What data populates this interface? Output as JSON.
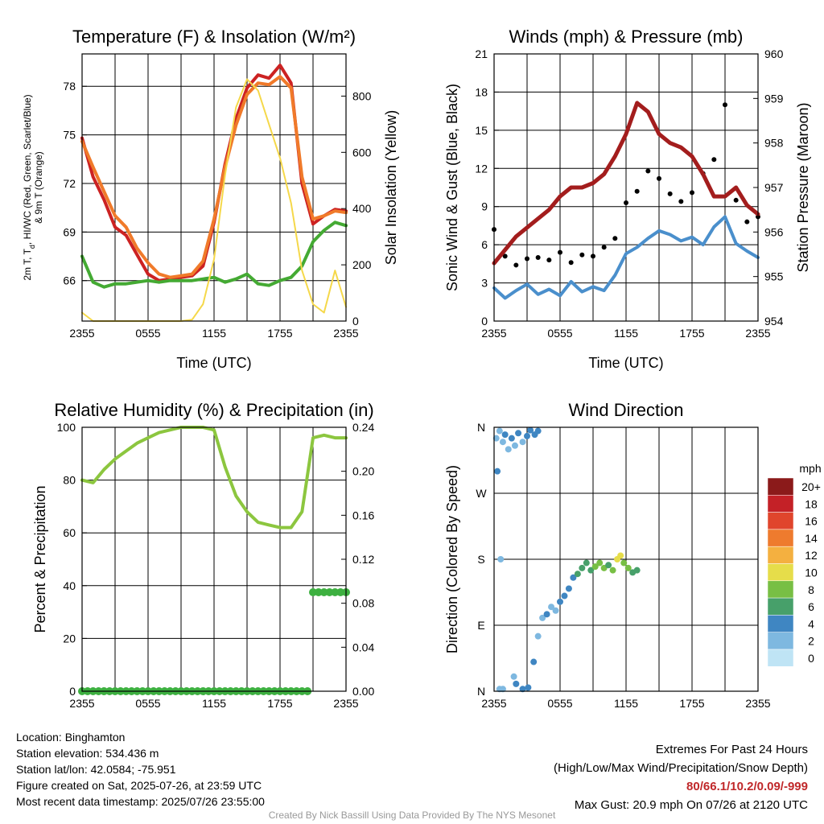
{
  "panels": {
    "temp": {
      "title": "Temperature (F) & Insolation (W/m²)",
      "ylabel_left": [
        "2m T, T",
        "d",
        ", HI/WC (Red, Green, Scarlet/Blue)",
        "& 9m T (Orange)"
      ],
      "ylabel_right": "Solar Insolation (Yellow)",
      "xlabel": "Time (UTC)"
    },
    "winds": {
      "title": "Winds (mph) & Pressure (mb)",
      "ylabel_left": "Sonic Wind & Gust (Blue, Black)",
      "ylabel_right": "Station Pressure (Maroon)",
      "xlabel": "Time (UTC)"
    },
    "rh": {
      "title": "Relative Humidity (%) & Precipitation (in)",
      "ylabel_left": "Percent & Precipitation"
    },
    "wdir": {
      "title": "Wind Direction",
      "ylabel_left": "Direction (Colored By Speed)",
      "colorbar_unit": "mph"
    }
  },
  "info_left": [
    "Location: Binghamton",
    "Station elevation: 534.436 m",
    "Station lat/lon: 42.0584; -75.951",
    "Figure created on Sat, 2025-07-26, at 23:59 UTC",
    "Most recent data timestamp: 2025/07/26 23:55:00"
  ],
  "extremes": {
    "heading": "Extremes For Past 24 Hours",
    "subheading": "(High/Low/Max Wind/Precipitation/Snow Depth)",
    "values": "80/66.1/10.2/0.09/-999",
    "max_gust": "Max Gust: 20.9 mph On 07/26 at 2120 UTC"
  },
  "credit": "Created By Nick Bassill Using Data Provided By The NYS Mesonet",
  "chart_data": [
    {
      "type": "line",
      "title": "Temperature (F) & Insolation (W/m²)",
      "xlabel": "Time (UTC)",
      "x_ticks": [
        "2355",
        "0555",
        "1155",
        "1755",
        "2355"
      ],
      "x_hours_since_2355": [
        0,
        1,
        2,
        3,
        4,
        5,
        6,
        7,
        8,
        9,
        10,
        11,
        12,
        13,
        14,
        15,
        16,
        17,
        18,
        19,
        20,
        21,
        22,
        23,
        24
      ],
      "ylim": [
        63.5,
        80.0
      ],
      "yticks": [
        66,
        69,
        72,
        75,
        78
      ],
      "y2lim": [
        0,
        950
      ],
      "y2ticks": [
        0,
        200,
        400,
        600,
        800
      ],
      "series": [
        {
          "name": "2m T (Red)",
          "color": "#cc2222",
          "axis": "left",
          "values": [
            74.8,
            72.4,
            71.0,
            69.3,
            68.8,
            67.6,
            66.4,
            66.0,
            66.1,
            66.2,
            66.3,
            66.9,
            69.6,
            73.2,
            76.0,
            77.9,
            78.7,
            78.5,
            79.3,
            78.2,
            72.0,
            69.5,
            70.0,
            70.4,
            70.3
          ]
        },
        {
          "name": "9m T (Orange)",
          "color": "#f07a2a",
          "axis": "left",
          "values": [
            74.6,
            73.0,
            71.5,
            70.0,
            69.3,
            68.0,
            67.1,
            66.4,
            66.2,
            66.3,
            66.4,
            67.2,
            69.8,
            73.0,
            75.6,
            77.5,
            78.2,
            78.1,
            78.6,
            77.9,
            72.4,
            69.8,
            70.0,
            70.3,
            70.2
          ]
        },
        {
          "name": "Td (Green)",
          "color": "#44aa33",
          "axis": "left",
          "values": [
            67.5,
            65.9,
            65.6,
            65.8,
            65.8,
            65.9,
            66.0,
            65.9,
            66.0,
            66.0,
            66.0,
            66.1,
            66.2,
            65.9,
            66.1,
            66.4,
            65.8,
            65.7,
            66.0,
            66.2,
            66.9,
            68.4,
            69.1,
            69.6,
            69.4
          ]
        },
        {
          "name": "Solar Insolation (Yellow)",
          "color": "#f5d84a",
          "axis": "right",
          "values": [
            30,
            0,
            0,
            0,
            0,
            0,
            0,
            0,
            0,
            0,
            5,
            60,
            220,
            520,
            760,
            860,
            820,
            700,
            580,
            420,
            180,
            60,
            30,
            180,
            50
          ]
        }
      ]
    },
    {
      "type": "line",
      "title": "Winds (mph) & Pressure (mb)",
      "xlabel": "Time (UTC)",
      "x_ticks": [
        "2355",
        "0555",
        "1155",
        "1755",
        "2355"
      ],
      "x_hours_since_2355": [
        0,
        1,
        2,
        3,
        4,
        5,
        6,
        7,
        8,
        9,
        10,
        11,
        12,
        13,
        14,
        15,
        16,
        17,
        18,
        19,
        20,
        21,
        22,
        23,
        24
      ],
      "ylim": [
        0,
        21
      ],
      "yticks": [
        0,
        3,
        6,
        9,
        12,
        15,
        18,
        21
      ],
      "y2lim": [
        954,
        960
      ],
      "y2ticks": [
        954,
        955,
        956,
        957,
        958,
        959,
        960
      ],
      "series": [
        {
          "name": "Sonic Wind (Blue)",
          "color": "#4a8fcc",
          "axis": "left",
          "values": [
            2.6,
            1.8,
            2.4,
            2.9,
            2.1,
            2.5,
            2.0,
            3.1,
            2.3,
            2.7,
            2.4,
            3.6,
            5.3,
            5.8,
            6.5,
            7.1,
            6.8,
            6.3,
            6.6,
            6.0,
            7.4,
            8.2,
            6.1,
            5.5,
            5.0
          ]
        },
        {
          "name": "Gust (Black)",
          "color": "#000000",
          "axis": "left",
          "values": [
            7.2,
            5.1,
            4.4,
            4.9,
            5.0,
            4.8,
            5.4,
            4.6,
            5.2,
            5.1,
            5.8,
            6.5,
            9.3,
            10.2,
            11.8,
            11.2,
            10.0,
            9.4,
            10.1,
            11.6,
            12.7,
            17.0,
            9.5,
            7.8,
            8.2
          ]
        },
        {
          "name": "Station Pressure (Maroon)",
          "color": "#a31d1d",
          "axis": "right",
          "values": [
            955.3,
            955.6,
            955.9,
            956.1,
            956.3,
            956.5,
            956.8,
            957.0,
            957.0,
            957.1,
            957.3,
            957.7,
            958.2,
            958.9,
            958.7,
            958.2,
            958.0,
            957.9,
            957.7,
            957.3,
            956.8,
            956.8,
            957.0,
            956.6,
            956.4
          ]
        }
      ]
    },
    {
      "type": "line",
      "title": "Relative Humidity (%) & Precipitation (in)",
      "x_ticks": [
        "2355",
        "0555",
        "1155",
        "1755",
        "2355"
      ],
      "x_hours_since_2355": [
        0,
        1,
        2,
        3,
        4,
        5,
        6,
        7,
        8,
        9,
        10,
        11,
        12,
        13,
        14,
        15,
        16,
        17,
        18,
        19,
        20,
        21,
        22,
        23,
        24
      ],
      "ylim": [
        0,
        100
      ],
      "yticks": [
        0,
        20,
        40,
        60,
        80,
        100
      ],
      "y2lim": [
        0,
        0.24
      ],
      "y2ticks": [
        0.0,
        0.04,
        0.08,
        0.12,
        0.16,
        0.2,
        0.24
      ],
      "series": [
        {
          "name": "Relative Humidity",
          "color": "#8cc63f",
          "axis": "left",
          "values": [
            80,
            79,
            84,
            88,
            91,
            94,
            96,
            98,
            99,
            100,
            100,
            100,
            99,
            85,
            74,
            68,
            64,
            63,
            62,
            62,
            68,
            96,
            97,
            96,
            96
          ]
        },
        {
          "name": "Precipitation",
          "color": "#3db040",
          "axis": "right",
          "values": [
            0,
            0,
            0,
            0,
            0,
            0,
            0,
            0,
            0,
            0,
            0,
            0,
            0,
            0,
            0,
            0,
            0,
            0,
            0,
            0,
            0.0,
            0.09,
            0.09,
            0.09,
            0.09
          ]
        }
      ]
    },
    {
      "type": "scatter",
      "title": "Wind Direction",
      "x_ticks": [
        "2355",
        "0555",
        "1155",
        "1755",
        "2355"
      ],
      "y_ticks": [
        "N",
        "E",
        "S",
        "W",
        "N"
      ],
      "ylim_deg": [
        0,
        360
      ],
      "colorbar": {
        "unit": "mph",
        "labels": [
          "0",
          "2",
          "4",
          "6",
          "8",
          "10",
          "12",
          "14",
          "16",
          "18",
          "20+"
        ],
        "colors": [
          "#bfe4f5",
          "#7eb8e0",
          "#3f86c2",
          "#47a06a",
          "#78bf44",
          "#e6dd4a",
          "#f4b040",
          "#ee7b2e",
          "#e0452c",
          "#c42127",
          "#8b1a1a"
        ]
      },
      "points": [
        {
          "x": 0.2,
          "dir": 345,
          "speed": 2
        },
        {
          "x": 0.5,
          "dir": 355,
          "speed": 1
        },
        {
          "x": 0.8,
          "dir": 340,
          "speed": 2
        },
        {
          "x": 1.0,
          "dir": 350,
          "speed": 3
        },
        {
          "x": 1.3,
          "dir": 330,
          "speed": 2
        },
        {
          "x": 1.6,
          "dir": 345,
          "speed": 3
        },
        {
          "x": 1.9,
          "dir": 335,
          "speed": 2
        },
        {
          "x": 2.2,
          "dir": 352,
          "speed": 3
        },
        {
          "x": 2.6,
          "dir": 340,
          "speed": 2
        },
        {
          "x": 3.0,
          "dir": 348,
          "speed": 3
        },
        {
          "x": 3.3,
          "dir": 356,
          "speed": 4
        },
        {
          "x": 3.7,
          "dir": 350,
          "speed": 3
        },
        {
          "x": 4.0,
          "dir": 355,
          "speed": 4
        },
        {
          "x": 0.3,
          "dir": 300,
          "speed": 3
        },
        {
          "x": 0.6,
          "dir": 180,
          "speed": 1
        },
        {
          "x": 0.5,
          "dir": 3,
          "speed": 1
        },
        {
          "x": 0.8,
          "dir": 3,
          "speed": 2
        },
        {
          "x": 1.8,
          "dir": 20,
          "speed": 2
        },
        {
          "x": 2.0,
          "dir": 10,
          "speed": 3
        },
        {
          "x": 2.6,
          "dir": 3,
          "speed": 3
        },
        {
          "x": 3.1,
          "dir": 5,
          "speed": 4
        },
        {
          "x": 3.6,
          "dir": 40,
          "speed": 3
        },
        {
          "x": 4.0,
          "dir": 75,
          "speed": 2
        },
        {
          "x": 4.4,
          "dir": 100,
          "speed": 2
        },
        {
          "x": 4.8,
          "dir": 105,
          "speed": 3
        },
        {
          "x": 5.2,
          "dir": 115,
          "speed": 2
        },
        {
          "x": 5.6,
          "dir": 110,
          "speed": 2
        },
        {
          "x": 6.0,
          "dir": 122,
          "speed": 3
        },
        {
          "x": 6.4,
          "dir": 130,
          "speed": 3
        },
        {
          "x": 6.8,
          "dir": 140,
          "speed": 4
        },
        {
          "x": 7.2,
          "dir": 155,
          "speed": 4
        },
        {
          "x": 7.6,
          "dir": 160,
          "speed": 5
        },
        {
          "x": 8.0,
          "dir": 168,
          "speed": 5
        },
        {
          "x": 8.4,
          "dir": 175,
          "speed": 6
        },
        {
          "x": 8.8,
          "dir": 165,
          "speed": 6
        },
        {
          "x": 9.2,
          "dir": 170,
          "speed": 7
        },
        {
          "x": 9.6,
          "dir": 175,
          "speed": 8
        },
        {
          "x": 10.0,
          "dir": 168,
          "speed": 7
        },
        {
          "x": 10.4,
          "dir": 172,
          "speed": 6
        },
        {
          "x": 10.8,
          "dir": 165,
          "speed": 7
        },
        {
          "x": 11.2,
          "dir": 180,
          "speed": 9
        },
        {
          "x": 11.5,
          "dir": 185,
          "speed": 10
        },
        {
          "x": 11.8,
          "dir": 175,
          "speed": 8
        },
        {
          "x": 12.2,
          "dir": 168,
          "speed": 7
        },
        {
          "x": 12.6,
          "dir": 162,
          "speed": 6
        },
        {
          "x": 13.0,
          "dir": 165,
          "speed": 6
        }
      ]
    }
  ]
}
